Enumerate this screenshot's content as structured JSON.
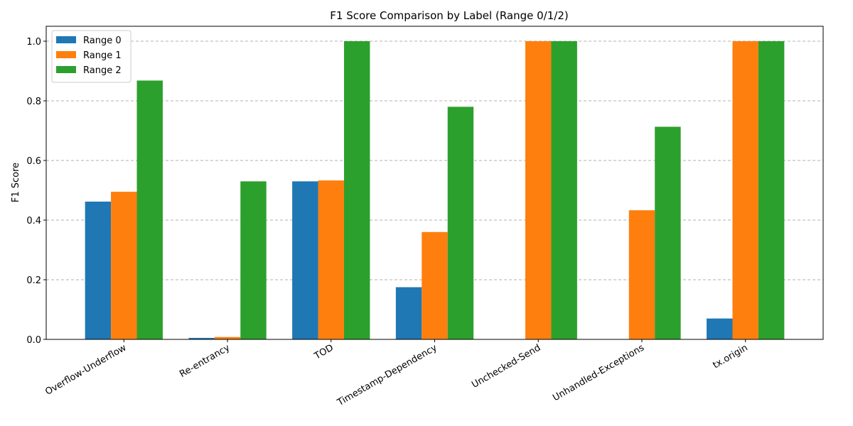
{
  "chart_data": {
    "type": "bar",
    "title": "F1 Score Comparison by Label (Range 0/1/2)",
    "xlabel": "",
    "ylabel": "F1 Score",
    "categories": [
      "Overflow-Underflow",
      "Re-entrancy",
      "TOD",
      "Timestamp-Dependency",
      "Unchecked-Send",
      "Unhandled-Exceptions",
      "tx.origin"
    ],
    "series": [
      {
        "name": "Range 0",
        "color": "#1f77b4",
        "values": [
          0.462,
          0.005,
          0.53,
          0.175,
          0.0,
          0.0,
          0.07
        ]
      },
      {
        "name": "Range 1",
        "color": "#ff7f0e",
        "values": [
          0.495,
          0.008,
          0.533,
          0.36,
          1.0,
          0.433,
          1.0
        ]
      },
      {
        "name": "Range 2",
        "color": "#2ca02c",
        "values": [
          0.868,
          0.53,
          1.0,
          0.78,
          1.0,
          0.713,
          1.0
        ]
      }
    ],
    "ylim": [
      0,
      1.05
    ],
    "yticks": [
      "0.0",
      "0.2",
      "0.4",
      "0.6",
      "0.8",
      "1.0"
    ],
    "grid": "y-dashed",
    "legend": "top-left"
  }
}
